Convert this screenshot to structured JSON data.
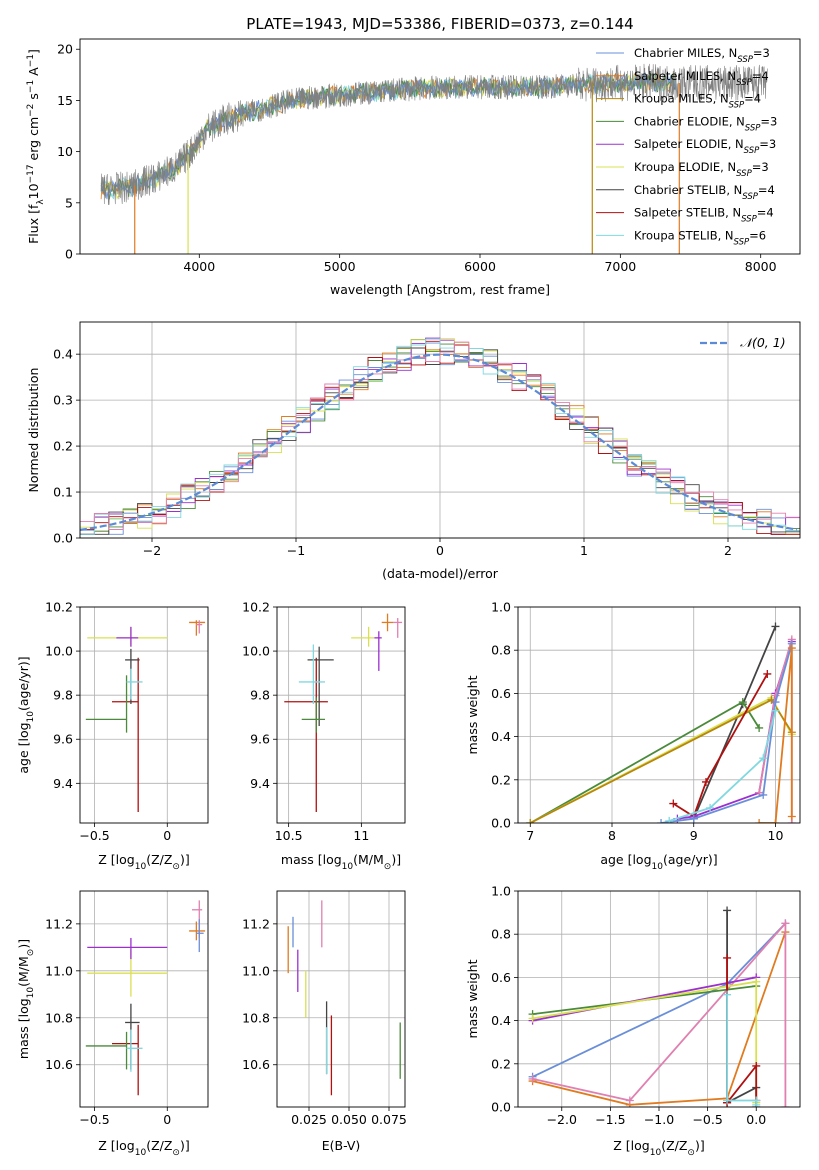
{
  "figure": {
    "title": "PLATE=1943, MJD=53386, FIBERID=0373, z=0.144"
  },
  "colors": {
    "chabrier_miles": "#6a8fd8",
    "salpeter_miles": "#e07b1f",
    "kroupa_miles": "#b8860b",
    "chabrier_elodie": "#4a8a3a",
    "salpeter_elodie": "#9b30d0",
    "kroupa_elodie": "#d8e050",
    "chabrier_stelib": "#444444",
    "salpeter_stelib": "#b01010",
    "kroupa_stelib": "#80d8e0",
    "pink": "#e080b0",
    "grey_spectrum": "#808080"
  },
  "chart_data": [
    {
      "id": "spectrum",
      "type": "line",
      "title": "PLATE=1943, MJD=53386, FIBERID=0373, z=0.144",
      "xlabel": "wavelength [Angstrom, rest frame]",
      "ylabel_parts": [
        "Flux [f",
        "λ",
        "10",
        "−17",
        " erg cm",
        "−2",
        " s",
        "−1",
        " A",
        "−1",
        "]"
      ],
      "xlim": [
        3150,
        8280
      ],
      "ylim": [
        0,
        21
      ],
      "xticks": [
        4000,
        5000,
        6000,
        7000,
        8000
      ],
      "yticks": [
        0,
        5,
        10,
        15,
        20
      ],
      "grid": false,
      "legend_position": "top-right",
      "legend": [
        {
          "label": "Chabrier MILES, N",
          "sub": "SSP",
          "eq": "=3",
          "color": "#6a8fd8"
        },
        {
          "label": "Salpeter MILES, N",
          "sub": "SSP",
          "eq": "=4",
          "color": "#e07b1f"
        },
        {
          "label": "Kroupa MILES, N",
          "sub": "SSP",
          "eq": "=4",
          "color": "#b8860b"
        },
        {
          "label": "Chabrier ELODIE, N",
          "sub": "SSP",
          "eq": "=3",
          "color": "#4a8a3a"
        },
        {
          "label": "Salpeter ELODIE, N",
          "sub": "SSP",
          "eq": "=3",
          "color": "#9b30d0"
        },
        {
          "label": "Kroupa ELODIE, N",
          "sub": "SSP",
          "eq": "=3",
          "color": "#d8e050"
        },
        {
          "label": "Chabrier STELIB, N",
          "sub": "SSP",
          "eq": "=4",
          "color": "#444444"
        },
        {
          "label": "Salpeter STELIB, N",
          "sub": "SSP",
          "eq": "=4",
          "color": "#b01010"
        },
        {
          "label": "Kroupa STELIB, N",
          "sub": "SSP",
          "eq": "=6",
          "color": "#80d8e0"
        }
      ],
      "continuum": {
        "x": [
          3300,
          3500,
          3700,
          3850,
          3950,
          4050,
          4200,
          4400,
          4600,
          4800,
          5000,
          5300,
          5600,
          6000,
          6400,
          6800,
          7200,
          7400
        ],
        "y": [
          6.3,
          6.5,
          7.5,
          8.6,
          10.2,
          12.2,
          13.2,
          14.0,
          14.8,
          15.3,
          15.5,
          15.9,
          16.2,
          16.3,
          16.3,
          16.6,
          16.8,
          16.7
        ]
      },
      "noisy_data_range": [
        3300,
        8050
      ],
      "drop_lines": [
        {
          "x": 3540,
          "color": "#e07b1f"
        },
        {
          "x": 3920,
          "color": "#d8e050"
        },
        {
          "x": 6800,
          "color": "#b8860b"
        },
        {
          "x": 7420,
          "color": "#e07b1f"
        }
      ]
    },
    {
      "id": "residuals",
      "type": "step",
      "xlabel": "(data-model)/error",
      "ylabel": "Normed distribution",
      "xlim": [
        -2.5,
        2.5
      ],
      "ylim": [
        0,
        0.47
      ],
      "xticks": [
        -2,
        -1,
        0,
        1,
        2
      ],
      "yticks": [
        0.0,
        0.1,
        0.2,
        0.3,
        0.4
      ],
      "grid": true,
      "legend_position": "top-right",
      "gaussian_label": "𝒩(0, 1)",
      "gaussian_color": "#5b8bd6",
      "bin_width": 0.1
    },
    {
      "id": "age_vs_Z",
      "type": "errorbar",
      "xlabel_parts": [
        "Z [log",
        "10",
        "(Z/Z",
        "⊙",
        ")]"
      ],
      "ylabel_parts": [
        "age  [log",
        "10",
        "(age/yr)]"
      ],
      "xlim": [
        -0.6,
        0.28
      ],
      "ylim": [
        9.22,
        10.2
      ],
      "xticks": [
        -0.5,
        0.0
      ],
      "yticks": [
        9.4,
        9.6,
        9.8,
        10.0,
        10.2
      ],
      "grid": true,
      "points": [
        {
          "x": -0.2,
          "y": 9.77,
          "xerr": [
            0.18,
            0.0
          ],
          "yerr": [
            0.5,
            0.2
          ],
          "color": "#b01010"
        },
        {
          "x": -0.25,
          "y": 9.96,
          "xerr": [
            0.04,
            0.06
          ],
          "yerr": [
            0.2,
            0.05
          ],
          "color": "#444444"
        },
        {
          "x": -0.28,
          "y": 9.69,
          "xerr": [
            0.28,
            0.0
          ],
          "yerr": [
            0.06,
            0.2
          ],
          "color": "#4a8a3a"
        },
        {
          "x": -0.25,
          "y": 9.86,
          "xerr": [
            0.03,
            0.08
          ],
          "yerr": [
            0.08,
            0.06
          ],
          "color": "#80d8e0"
        },
        {
          "x": -0.25,
          "y": 10.06,
          "xerr": [
            0.3,
            0.25
          ],
          "yerr": [
            0.04,
            0.05
          ],
          "color": "#d8e050"
        },
        {
          "x": -0.25,
          "y": 10.06,
          "xerr": [
            0.1,
            0.05
          ],
          "yerr": [
            0.04,
            0.05
          ],
          "color": "#9b30d0"
        },
        {
          "x": 0.2,
          "y": 10.13,
          "xerr": [
            0.05,
            0.06
          ],
          "yerr": [
            0.06,
            0.01
          ],
          "color": "#e07b1f"
        },
        {
          "x": 0.22,
          "y": 10.12,
          "xerr": [
            0.02,
            0.02
          ],
          "yerr": [
            0.04,
            0.02
          ],
          "color": "#e080b0"
        }
      ]
    },
    {
      "id": "age_vs_mass",
      "type": "errorbar",
      "xlabel_parts": [
        "mass [log",
        "10",
        "(M/M",
        "⊙",
        ")]"
      ],
      "xlim": [
        10.42,
        11.3
      ],
      "ylim": [
        9.22,
        10.2
      ],
      "xticks": [
        10.5,
        11.0
      ],
      "yticks": [
        9.4,
        9.6,
        9.8,
        10.0,
        10.2
      ],
      "grid": true,
      "points": [
        {
          "x": 10.69,
          "y": 9.77,
          "xerr": [
            0.22,
            0.08
          ],
          "yerr": [
            0.5,
            0.2
          ],
          "color": "#b01010"
        },
        {
          "x": 10.71,
          "y": 9.96,
          "xerr": [
            0.08,
            0.1
          ],
          "yerr": [
            0.3,
            0.06
          ],
          "color": "#444444"
        },
        {
          "x": 10.69,
          "y": 9.69,
          "xerr": [
            0.1,
            0.06
          ],
          "yerr": [
            0.06,
            0.1
          ],
          "color": "#4a8a3a"
        },
        {
          "x": 10.67,
          "y": 9.86,
          "xerr": [
            0.1,
            0.08
          ],
          "yerr": [
            0.1,
            0.17
          ],
          "color": "#80d8e0"
        },
        {
          "x": 11.05,
          "y": 10.06,
          "xerr": [
            0.12,
            0.04
          ],
          "yerr": [
            0.04,
            0.05
          ],
          "color": "#d8e050"
        },
        {
          "x": 11.12,
          "y": 10.06,
          "xerr": [
            0.03,
            0.02
          ],
          "yerr": [
            0.15,
            0.03
          ],
          "color": "#9b30d0"
        },
        {
          "x": 11.18,
          "y": 10.13,
          "xerr": [
            0.04,
            0.04
          ],
          "yerr": [
            0.04,
            0.04
          ],
          "color": "#e07b1f"
        },
        {
          "x": 11.25,
          "y": 10.13,
          "xerr": [
            0.03,
            0.03
          ],
          "yerr": [
            0.07,
            0.02
          ],
          "color": "#e080b0"
        }
      ]
    },
    {
      "id": "mass_weight_vs_age",
      "type": "line",
      "xlabel_parts": [
        "age  [log",
        "10",
        "(age/yr)]"
      ],
      "ylabel": "mass weight",
      "xlim": [
        6.85,
        10.3
      ],
      "ylim": [
        0,
        1.0
      ],
      "xticks": [
        7,
        8,
        9,
        10
      ],
      "yticks": [
        0.0,
        0.2,
        0.4,
        0.6,
        0.8,
        1.0
      ],
      "grid": true,
      "series": [
        {
          "color": "#444444",
          "x": [
            9.0,
            9.6,
            10.0
          ],
          "y": [
            0.02,
            0.55,
            0.91
          ]
        },
        {
          "color": "#4a8a3a",
          "x": [
            7.0,
            9.6,
            9.8
          ],
          "y": [
            0.0,
            0.56,
            0.44
          ]
        },
        {
          "color": "#d8e050",
          "x": [
            7.0,
            9.95,
            10.2
          ],
          "y": [
            0.0,
            0.58,
            0.41
          ]
        },
        {
          "color": "#b8860b",
          "x": [
            7.0,
            9.95,
            10.2
          ],
          "y": [
            0.0,
            0.57,
            0.42
          ]
        },
        {
          "color": "#b01010",
          "x": [
            8.75,
            9.0,
            9.15,
            9.9
          ],
          "y": [
            0.09,
            0.03,
            0.19,
            0.69
          ]
        },
        {
          "color": "#9b30d0",
          "x": [
            8.8,
            9.0,
            9.8,
            10.0,
            10.2
          ],
          "y": [
            0.02,
            0.03,
            0.14,
            0.6,
            0.84
          ]
        },
        {
          "color": "#e080b0",
          "x": [
            9.8,
            10.0,
            10.2,
            10.2
          ],
          "y": [
            0.14,
            0.59,
            0.85,
            0.0
          ]
        },
        {
          "color": "#6a8fd8",
          "x": [
            8.6,
            9.0,
            9.85,
            10.0,
            10.2
          ],
          "y": [
            0.0,
            0.02,
            0.13,
            0.56,
            0.83
          ]
        },
        {
          "color": "#80d8e0",
          "x": [
            8.7,
            9.2,
            9.85,
            10.0
          ],
          "y": [
            0.01,
            0.07,
            0.3,
            0.52
          ]
        },
        {
          "color": "#e07b1f",
          "x": [
            9.8,
            10.0,
            10.2,
            10.2
          ],
          "y": [
            0.0,
            0.0,
            0.81,
            0.03
          ]
        }
      ]
    },
    {
      "id": "mass_vs_Z",
      "type": "errorbar",
      "xlabel_parts": [
        "Z [log",
        "10",
        "(Z/Z",
        "⊙",
        ")]"
      ],
      "ylabel_parts": [
        "mass [log",
        "10",
        "(M/M",
        "⊙",
        ")]"
      ],
      "xlim": [
        -0.6,
        0.28
      ],
      "ylim": [
        10.42,
        11.34
      ],
      "xticks": [
        -0.5,
        0.0
      ],
      "yticks": [
        10.6,
        10.8,
        11.0,
        11.2
      ],
      "grid": true,
      "points": [
        {
          "x": -0.2,
          "y": 10.69,
          "xerr": [
            0.18,
            0.0
          ],
          "yerr": [
            0.22,
            0.08
          ],
          "color": "#b01010"
        },
        {
          "x": -0.25,
          "y": 10.78,
          "xerr": [
            0.04,
            0.06
          ],
          "yerr": [
            0.2,
            0.08
          ],
          "color": "#444444"
        },
        {
          "x": -0.28,
          "y": 10.68,
          "xerr": [
            0.28,
            0.0
          ],
          "yerr": [
            0.1,
            0.06
          ],
          "color": "#4a8a3a"
        },
        {
          "x": -0.25,
          "y": 10.67,
          "xerr": [
            0.03,
            0.08
          ],
          "yerr": [
            0.1,
            0.08
          ],
          "color": "#80d8e0"
        },
        {
          "x": -0.25,
          "y": 10.99,
          "xerr": [
            0.3,
            0.25
          ],
          "yerr": [
            0.1,
            0.1
          ],
          "color": "#d8e050"
        },
        {
          "x": -0.25,
          "y": 11.1,
          "xerr": [
            0.3,
            0.25
          ],
          "yerr": [
            0.05,
            0.04
          ],
          "color": "#9b30d0"
        },
        {
          "x": 0.2,
          "y": 11.17,
          "xerr": [
            0.05,
            0.06
          ],
          "yerr": [
            0.04,
            0.04
          ],
          "color": "#e07b1f"
        },
        {
          "x": 0.22,
          "y": 11.26,
          "xerr": [
            0.05,
            0.02
          ],
          "yerr": [
            0.12,
            0.04
          ],
          "color": "#e080b0"
        },
        {
          "x": 0.22,
          "y": 11.16,
          "xerr": [
            0.02,
            0.03
          ],
          "yerr": [
            0.08,
            0.06
          ],
          "color": "#6a8fd8"
        }
      ]
    },
    {
      "id": "mass_vs_ebv",
      "type": "errorbar",
      "xlabel": "E(B-V)",
      "xlim": [
        0.005,
        0.085
      ],
      "ylim": [
        10.42,
        11.34
      ],
      "xticks": [
        0.025,
        0.05,
        0.075
      ],
      "xtick_labels": [
        "0.025",
        "0.050",
        "0.075"
      ],
      "yticks": [
        10.6,
        10.8,
        11.0,
        11.2
      ],
      "grid": true,
      "points": [
        {
          "x": 0.012,
          "y": 11.07,
          "yerr": [
            0.08,
            0.12
          ],
          "color": "#e07b1f"
        },
        {
          "x": 0.015,
          "y": 11.15,
          "yerr": [
            0.05,
            0.08
          ],
          "color": "#6a8fd8"
        },
        {
          "x": 0.018,
          "y": 11.01,
          "yerr": [
            0.1,
            0.08
          ],
          "color": "#9b30d0"
        },
        {
          "x": 0.023,
          "y": 10.94,
          "yerr": [
            0.14,
            0.06
          ],
          "color": "#d8e050"
        },
        {
          "x": 0.033,
          "y": 11.2,
          "yerr": [
            0.1,
            0.1
          ],
          "color": "#e080b0"
        },
        {
          "x": 0.036,
          "y": 10.71,
          "yerr": [
            0.15,
            0.16
          ],
          "color": "#444444"
        },
        {
          "x": 0.036,
          "y": 10.66,
          "yerr": [
            0.1,
            0.1
          ],
          "color": "#80d8e0"
        },
        {
          "x": 0.039,
          "y": 10.69,
          "yerr": [
            0.22,
            0.12
          ],
          "color": "#b01010"
        },
        {
          "x": 0.082,
          "y": 10.66,
          "yerr": [
            0.12,
            0.12
          ],
          "color": "#4a8a3a"
        }
      ]
    },
    {
      "id": "mass_weight_vs_Z",
      "type": "line",
      "xlabel_parts": [
        "Z [log",
        "10",
        "(Z/Z",
        "⊙",
        ")]"
      ],
      "ylabel": "mass weight",
      "xlim": [
        -2.45,
        0.45
      ],
      "ylim": [
        0,
        1.0
      ],
      "xticks": [
        -2.0,
        -1.5,
        -1.0,
        -0.5,
        0.0
      ],
      "xtick_labels": [
        "−2.0",
        "−1.5",
        "−1.0",
        "−0.5",
        "0.0"
      ],
      "yticks": [
        0.0,
        0.2,
        0.4,
        0.6,
        0.8,
        1.0
      ],
      "grid": true,
      "series": [
        {
          "color": "#6a8fd8",
          "x": [
            -2.3,
            -0.3,
            0.3
          ],
          "y": [
            0.14,
            0.57,
            0.85
          ]
        },
        {
          "color": "#e07b1f",
          "x": [
            -2.3,
            -1.3,
            -0.3,
            0.3
          ],
          "y": [
            0.12,
            0.01,
            0.04,
            0.81
          ]
        },
        {
          "color": "#e080b0",
          "x": [
            -2.3,
            -1.3,
            0.3,
            0.3
          ],
          "y": [
            0.13,
            0.03,
            0.85,
            0.0
          ]
        },
        {
          "color": "#4a8a3a",
          "x": [
            -2.3,
            0.0
          ],
          "y": [
            0.43,
            0.56
          ]
        },
        {
          "color": "#9b30d0",
          "x": [
            -2.3,
            0.0
          ],
          "y": [
            0.4,
            0.6
          ]
        },
        {
          "color": "#d8e050",
          "x": [
            -2.3,
            0.0,
            0.0
          ],
          "y": [
            0.41,
            0.58,
            0.02
          ]
        },
        {
          "color": "#444444",
          "x": [
            -0.3,
            -0.3,
            0.0,
            0.0
          ],
          "y": [
            0.91,
            0.02,
            0.09,
            0.0
          ]
        },
        {
          "color": "#b01010",
          "x": [
            -0.3,
            -0.3,
            0.0,
            0.0
          ],
          "y": [
            0.69,
            0.02,
            0.19,
            0.03
          ]
        },
        {
          "color": "#80d8e0",
          "x": [
            -0.3,
            -0.3,
            0.0,
            0.0
          ],
          "y": [
            0.52,
            0.03,
            0.03,
            0.01
          ]
        }
      ]
    }
  ]
}
